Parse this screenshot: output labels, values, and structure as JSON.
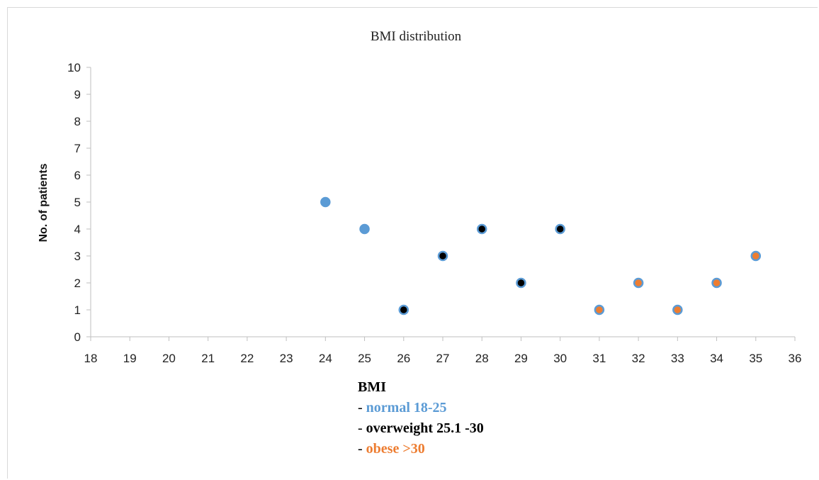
{
  "chart_data": {
    "type": "scatter",
    "title": "BMI distribution",
    "xlabel": "",
    "ylabel": "No. of patients",
    "xlim": [
      18,
      36
    ],
    "ylim": [
      0,
      10
    ],
    "xticks": [
      18,
      19,
      20,
      21,
      22,
      23,
      24,
      25,
      26,
      27,
      28,
      29,
      30,
      31,
      32,
      33,
      34,
      35,
      36
    ],
    "yticks": [
      0,
      1,
      2,
      3,
      4,
      5,
      6,
      7,
      8,
      9,
      10
    ],
    "grid": false,
    "series": [
      {
        "name": "normal 18-25",
        "color": "#5b9bd5",
        "points": [
          {
            "x": 24,
            "y": 5
          },
          {
            "x": 25,
            "y": 4
          }
        ]
      },
      {
        "name": "overweight 25.1 -30",
        "color": "#000000",
        "points": [
          {
            "x": 26,
            "y": 1
          },
          {
            "x": 27,
            "y": 3
          },
          {
            "x": 28,
            "y": 4
          },
          {
            "x": 29,
            "y": 2
          },
          {
            "x": 30,
            "y": 4
          }
        ]
      },
      {
        "name": "obese >30",
        "color": "#ed7d31",
        "points": [
          {
            "x": 31,
            "y": 1
          },
          {
            "x": 32,
            "y": 2
          },
          {
            "x": 33,
            "y": 1
          },
          {
            "x": 34,
            "y": 2
          },
          {
            "x": 35,
            "y": 3
          }
        ]
      }
    ],
    "marker_outline_color": "#5b9bd5",
    "legend": {
      "title": "BMI",
      "position": "bottom-center",
      "items": [
        {
          "prefix": "- ",
          "label": "normal 18-25",
          "color": "#5b9bd5"
        },
        {
          "prefix": "- ",
          "label": "overweight 25.1 -30",
          "color": "#000000"
        },
        {
          "prefix": "- ",
          "label": "obese >30",
          "color": "#ed7d31"
        }
      ]
    }
  }
}
